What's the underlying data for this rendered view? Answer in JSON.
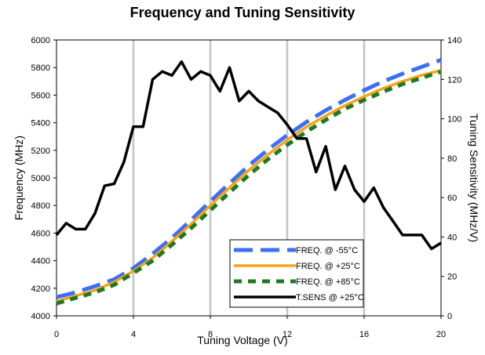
{
  "chart_data": {
    "type": "line",
    "title": "Frequency and Tuning Sensitivity",
    "xlabel": "Tuning Voltage (V)",
    "ylabel": "Frequency (MHz)",
    "y2label": "Tuning Sensitivity (MHz/V)",
    "xlim": [
      0,
      20
    ],
    "ylim": [
      4000,
      6000
    ],
    "y2lim": [
      0,
      140
    ],
    "xticks": [
      "0",
      "4",
      "8",
      "12",
      "16",
      "20"
    ],
    "yticks": [
      "4000",
      "4200",
      "4400",
      "4600",
      "4800",
      "5000",
      "5200",
      "5400",
      "5600",
      "5800",
      "6000"
    ],
    "y2ticks": [
      "0",
      "20",
      "40",
      "60",
      "80",
      "100",
      "120",
      "140"
    ],
    "grid": "vertical",
    "legend_position": "bottom-right",
    "series": [
      {
        "name": "FREQ. @ -55°C",
        "axis": "left",
        "color": "#3B6FF5",
        "style": "long-dash",
        "x": [
          0,
          1,
          2,
          3,
          4,
          5,
          6,
          7,
          8,
          9,
          10,
          11,
          12,
          13,
          14,
          15,
          16,
          17,
          18,
          19,
          20
        ],
        "y": [
          4135,
          4170,
          4215,
          4265,
          4345,
          4450,
          4565,
          4695,
          4830,
          4960,
          5090,
          5205,
          5310,
          5405,
          5490,
          5565,
          5635,
          5700,
          5755,
          5805,
          5855
        ]
      },
      {
        "name": "FREQ. @ +25°C",
        "axis": "left",
        "color": "#F7A21B",
        "style": "solid",
        "x": [
          0,
          1,
          2,
          3,
          4,
          5,
          6,
          7,
          8,
          9,
          10,
          11,
          12,
          13,
          14,
          15,
          16,
          17,
          18,
          19,
          20
        ],
        "y": [
          4105,
          4145,
          4185,
          4245,
          4325,
          4420,
          4540,
          4665,
          4800,
          4930,
          5055,
          5170,
          5275,
          5370,
          5450,
          5525,
          5590,
          5650,
          5700,
          5745,
          5780
        ]
      },
      {
        "name": "FREQ. @ +85°C",
        "axis": "left",
        "color": "#1E7A1E",
        "style": "dash",
        "x": [
          0,
          1,
          2,
          3,
          4,
          5,
          6,
          7,
          8,
          9,
          10,
          11,
          12,
          13,
          14,
          15,
          16,
          17,
          18,
          19,
          20
        ],
        "y": [
          4090,
          4130,
          4170,
          4225,
          4310,
          4400,
          4515,
          4635,
          4765,
          4895,
          5020,
          5135,
          5240,
          5335,
          5420,
          5500,
          5565,
          5625,
          5680,
          5725,
          5770
        ]
      },
      {
        "name": "T.SENS @ +25°C",
        "axis": "right",
        "color": "#000000",
        "style": "solid",
        "x": [
          0,
          0.5,
          1,
          1.5,
          2,
          2.5,
          3,
          3.5,
          4,
          4.5,
          5,
          5.5,
          6,
          6.5,
          7,
          7.5,
          8,
          8.5,
          9,
          9.5,
          10,
          10.5,
          11,
          11.5,
          12,
          12.5,
          13,
          13.5,
          14,
          14.5,
          15,
          15.5,
          16,
          16.5,
          17,
          17.5,
          18,
          18.5,
          19,
          19.5,
          20
        ],
        "y": [
          41,
          47,
          44,
          44,
          52,
          66,
          67,
          78,
          96,
          96,
          120,
          124,
          122,
          129,
          120,
          124,
          122,
          114,
          126,
          109,
          114,
          109,
          106,
          103,
          97,
          90,
          90,
          73,
          86,
          64,
          76,
          64,
          58,
          65,
          55,
          48,
          41,
          41,
          41,
          34,
          37
        ]
      }
    ]
  }
}
